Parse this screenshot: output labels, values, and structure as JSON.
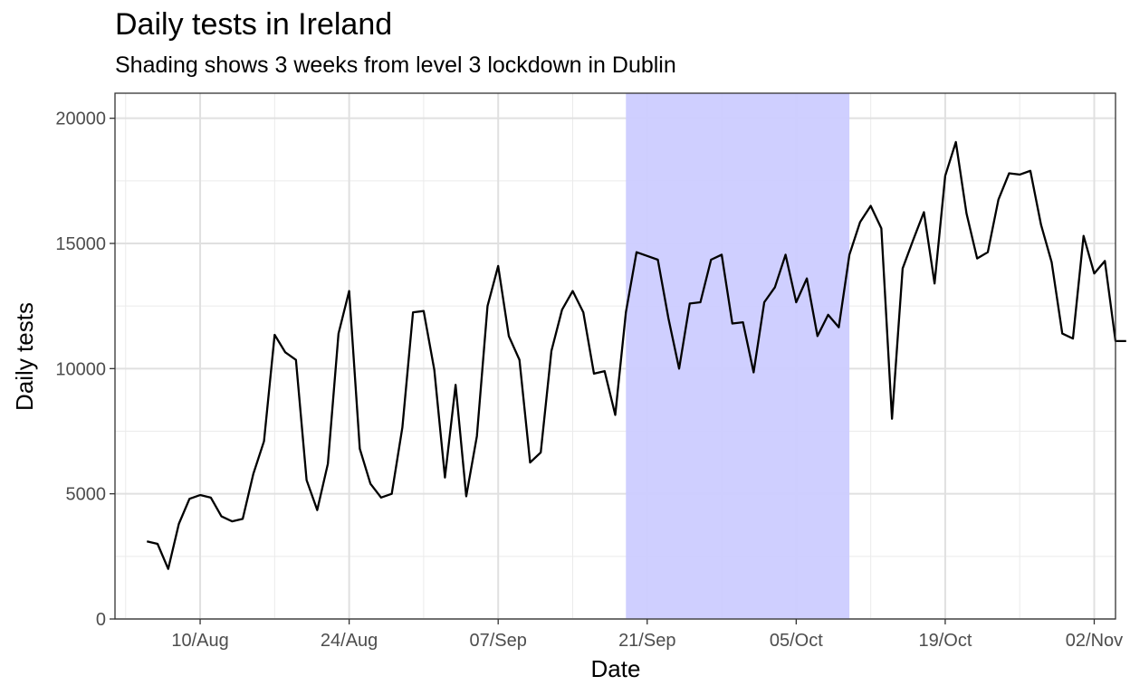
{
  "chart_data": {
    "type": "line",
    "title": "Daily tests in Ireland",
    "subtitle": "Shading shows 3 weeks from level 3 lockdown in Dublin",
    "xlabel": "Date",
    "ylabel": "Daily tests",
    "x_start": "2020-08-05",
    "xlim": [
      "2020-08-02",
      "2020-11-04"
    ],
    "ylim": [
      0,
      21000
    ],
    "x_ticks": [
      {
        "date": "2020-08-10",
        "label": "10/Aug"
      },
      {
        "date": "2020-08-24",
        "label": "24/Aug"
      },
      {
        "date": "2020-09-07",
        "label": "07/Sep"
      },
      {
        "date": "2020-09-21",
        "label": "21/Sep"
      },
      {
        "date": "2020-10-05",
        "label": "05/Oct"
      },
      {
        "date": "2020-10-19",
        "label": "19/Oct"
      },
      {
        "date": "2020-11-02",
        "label": "02/Nov"
      }
    ],
    "y_ticks": [
      0,
      5000,
      10000,
      15000,
      20000
    ],
    "shading": {
      "start": "2020-09-19",
      "end": "2020-10-10",
      "color": "#ccccff"
    },
    "grid": true,
    "series": [
      {
        "color": "#000000",
        "values": [
          3100,
          3000,
          2000,
          3800,
          4800,
          4950,
          4850,
          4100,
          3900,
          4000,
          5800,
          7100,
          11350,
          10650,
          10350,
          5550,
          4350,
          6200,
          11400,
          13100,
          6800,
          5400,
          4850,
          5000,
          7650,
          12250,
          12300,
          9950,
          5650,
          9350,
          4900,
          7300,
          12500,
          14100,
          11300,
          10350,
          6250,
          6650,
          10700,
          12350,
          13100,
          12250,
          9800,
          9900,
          8150,
          12250,
          14650,
          14500,
          14350,
          12000,
          10000,
          12600,
          12650,
          14350,
          14550,
          11800,
          11850,
          9850,
          12650,
          13250,
          14550,
          12650,
          13600,
          11300,
          12150,
          11650,
          14550,
          15850,
          16500,
          15600,
          8000,
          14000,
          15150,
          16250,
          13400,
          17700,
          19050,
          16200,
          14400,
          14650,
          16750,
          17800,
          17750,
          17900,
          15750,
          14250,
          11400,
          11200,
          15300,
          13800,
          14300,
          11100,
          11100
        ]
      }
    ]
  }
}
